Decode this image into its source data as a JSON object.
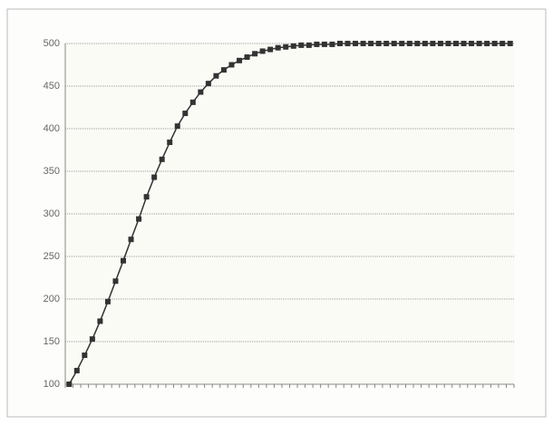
{
  "chart_data": {
    "type": "line",
    "categories": [
      null,
      null,
      null,
      null,
      null,
      null,
      null,
      null,
      null,
      null,
      null,
      null,
      null,
      null,
      null,
      null,
      null,
      null,
      null,
      null,
      null,
      null,
      null,
      null,
      null,
      null,
      null,
      null,
      null,
      null,
      null,
      null,
      null,
      null,
      null,
      null,
      null,
      null,
      null,
      null,
      null,
      null,
      null,
      null,
      null,
      null,
      null,
      null,
      null,
      null,
      null,
      null,
      null,
      null,
      null,
      null,
      null,
      null
    ],
    "series": [
      {
        "color": "#333333",
        "values": [
          100,
          116,
          134,
          153,
          174,
          197,
          221,
          245,
          270,
          294,
          320,
          343,
          364,
          384,
          403,
          418,
          431,
          443,
          453,
          462,
          469,
          475,
          480,
          484,
          488,
          491,
          493,
          495,
          496,
          497,
          498,
          498,
          499,
          499,
          499,
          500,
          500,
          500,
          500,
          500,
          500,
          500,
          500,
          500,
          500,
          500,
          500,
          500,
          500,
          500,
          500,
          500,
          500,
          500,
          500,
          500,
          500,
          500
        ]
      }
    ],
    "ylim": [
      100,
      500
    ],
    "yticks": [
      100,
      150,
      200,
      250,
      300,
      350,
      400,
      450,
      500
    ],
    "grid": true
  }
}
